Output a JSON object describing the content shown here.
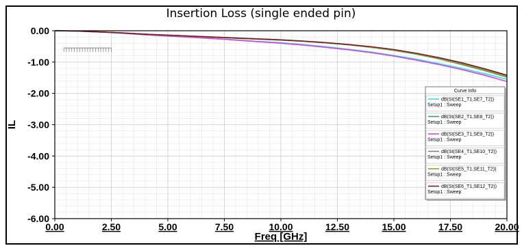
{
  "chart_data": {
    "type": "line",
    "title": "Insertion Loss  (single ended pin)",
    "xlabel": "Freq [GHz]",
    "ylabel": "IL",
    "xlim": [
      0,
      20
    ],
    "ylim": [
      -6,
      0
    ],
    "x_ticks": [
      "0.00",
      "2.50",
      "5.00",
      "7.50",
      "10.00",
      "12.50",
      "15.00",
      "17.50",
      "20.00"
    ],
    "y_ticks": [
      "0.00",
      "-1.00",
      "-2.00",
      "-3.00",
      "-4.00",
      "-5.00",
      "-6.00"
    ],
    "grid": true,
    "legend": {
      "title": "Curve Info",
      "placement": "right"
    },
    "x": [
      0,
      1,
      2,
      3,
      4,
      5,
      6,
      7,
      8,
      9,
      10,
      11,
      12,
      13,
      14,
      15,
      16,
      17,
      18,
      19,
      20
    ],
    "series": [
      {
        "name": "dB(St(SE1_T1,SE7_T2))",
        "sub": "Setup1 : Sweep",
        "color": "#33e0e0",
        "values": [
          0,
          -0.01,
          -0.04,
          -0.08,
          -0.13,
          -0.17,
          -0.21,
          -0.25,
          -0.29,
          -0.34,
          -0.38,
          -0.44,
          -0.51,
          -0.59,
          -0.68,
          -0.79,
          -0.91,
          -1.05,
          -1.2,
          -1.37,
          -1.55
        ]
      },
      {
        "name": "dB(St(SE2_T1,SE8_T2))",
        "sub": "Setup1 : Sweep",
        "color": "#2e9e6a",
        "values": [
          0,
          -0.01,
          -0.04,
          -0.07,
          -0.11,
          -0.15,
          -0.18,
          -0.21,
          -0.24,
          -0.27,
          -0.3,
          -0.34,
          -0.39,
          -0.45,
          -0.53,
          -0.63,
          -0.75,
          -0.9,
          -1.08,
          -1.27,
          -1.48
        ]
      },
      {
        "name": "dB(St(SE3_T1,SE9_T2))",
        "sub": "Setup1 : Sweep",
        "color": "#e040e0",
        "values": [
          0,
          -0.01,
          -0.04,
          -0.08,
          -0.13,
          -0.17,
          -0.21,
          -0.25,
          -0.3,
          -0.35,
          -0.4,
          -0.46,
          -0.53,
          -0.61,
          -0.7,
          -0.81,
          -0.94,
          -1.08,
          -1.24,
          -1.42,
          -1.62
        ]
      },
      {
        "name": "dB(St(SE4_T1,SE10_T2))",
        "sub": "Setup1 : Sweep",
        "color": "#808080",
        "values": [
          0,
          -0.01,
          -0.04,
          -0.07,
          -0.11,
          -0.14,
          -0.17,
          -0.2,
          -0.23,
          -0.26,
          -0.29,
          -0.33,
          -0.38,
          -0.44,
          -0.52,
          -0.61,
          -0.73,
          -0.87,
          -1.04,
          -1.23,
          -1.44
        ]
      },
      {
        "name": "dB(St(SE5_T1,SE11_T2))",
        "sub": "Setup1 : Sweep",
        "color": "#9a9a2a",
        "values": [
          0,
          -0.01,
          -0.04,
          -0.07,
          -0.11,
          -0.15,
          -0.18,
          -0.21,
          -0.24,
          -0.27,
          -0.3,
          -0.34,
          -0.39,
          -0.45,
          -0.53,
          -0.62,
          -0.74,
          -0.89,
          -1.06,
          -1.25,
          -1.46
        ]
      },
      {
        "name": "dB(St(SE6_T1,SE12_T2))",
        "sub": "Setup1 : Sweep",
        "color": "#7a1a2a",
        "values": [
          0,
          -0.01,
          -0.04,
          -0.07,
          -0.11,
          -0.14,
          -0.17,
          -0.2,
          -0.23,
          -0.26,
          -0.29,
          -0.33,
          -0.38,
          -0.44,
          -0.51,
          -0.6,
          -0.72,
          -0.86,
          -1.02,
          -1.21,
          -1.42
        ]
      }
    ]
  }
}
